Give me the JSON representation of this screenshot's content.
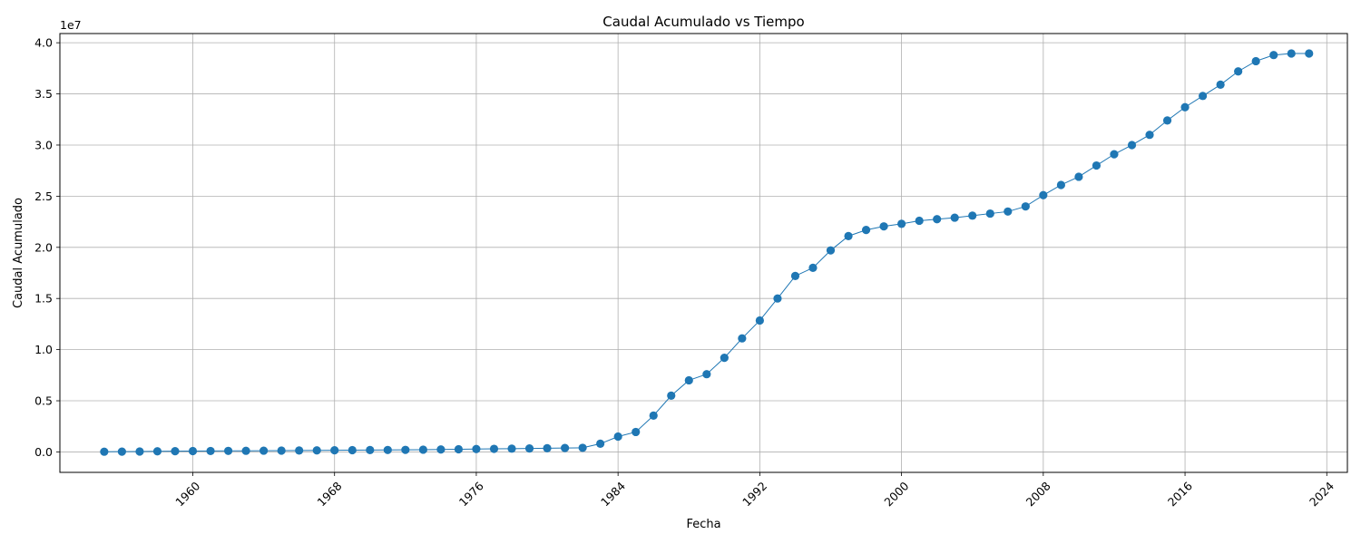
{
  "chart_data": {
    "type": "line",
    "title": "Caudal Acumulado vs Tiempo",
    "xlabel": "Fecha",
    "ylabel": "Caudal Acumulado",
    "y_offset_label": "1e7",
    "grid": true,
    "marker": "circle",
    "line_color": "#1f77b4",
    "x_ticks": [
      "1960",
      "1968",
      "1976",
      "1984",
      "1992",
      "2000",
      "2008",
      "2016",
      "2024"
    ],
    "y_ticks": [
      "0.0",
      "0.5",
      "1.0",
      "1.5",
      "2.0",
      "2.5",
      "3.0",
      "3.5",
      "4.0"
    ],
    "xlim": [
      "1952-07-01",
      "2025-03-01"
    ],
    "ylim": [
      -2000000,
      40900000
    ],
    "series": [
      {
        "x": [
          "1955-01-01",
          "1956-01-01",
          "1957-01-01",
          "1958-01-01",
          "1959-01-01",
          "1960-01-01",
          "1961-01-01",
          "1962-01-01",
          "1963-01-01",
          "1964-01-01",
          "1965-01-01",
          "1966-01-01",
          "1967-01-01",
          "1968-01-01",
          "1969-01-01",
          "1970-01-01",
          "1971-01-01",
          "1972-01-01",
          "1973-01-01",
          "1974-01-01",
          "1975-01-01",
          "1976-01-01",
          "1977-01-01",
          "1978-01-01",
          "1979-01-01",
          "1980-01-01",
          "1981-01-01",
          "1982-01-01",
          "1983-01-01",
          "1984-01-01",
          "1985-01-01",
          "1986-01-01",
          "1987-01-01",
          "1988-01-01",
          "1989-01-01",
          "1990-01-01",
          "1991-01-01",
          "1992-01-01",
          "1993-01-01",
          "1994-01-01",
          "1995-01-01",
          "1996-01-01",
          "1997-01-01",
          "1998-01-01",
          "1999-01-01",
          "2000-01-01",
          "2001-01-01",
          "2002-01-01",
          "2003-01-01",
          "2004-01-01",
          "2005-01-01",
          "2006-01-01",
          "2007-01-01",
          "2008-01-01",
          "2009-01-01",
          "2010-01-01",
          "2011-01-01",
          "2012-01-01",
          "2013-01-01",
          "2014-01-01",
          "2015-01-01",
          "2016-01-01",
          "2017-01-01",
          "2018-01-01",
          "2019-01-01",
          "2020-01-01",
          "2021-01-01",
          "2022-01-01",
          "2023-01-01"
        ],
        "values": [
          20000,
          30000,
          40000,
          60000,
          70000,
          80000,
          90000,
          100000,
          110000,
          120000,
          130000,
          140000,
          150000,
          160000,
          170000,
          180000,
          190000,
          200000,
          220000,
          240000,
          260000,
          280000,
          300000,
          320000,
          340000,
          360000,
          380000,
          400000,
          800000,
          1500000,
          1950000,
          3550000,
          5500000,
          7000000,
          7600000,
          9200000,
          11100000,
          12850000,
          15000000,
          17200000,
          18000000,
          19700000,
          21100000,
          21700000,
          22050000,
          22300000,
          22600000,
          22750000,
          22900000,
          23100000,
          23300000,
          23500000,
          24000000,
          25100000,
          26100000,
          26900000,
          28000000,
          29100000,
          30000000,
          31000000,
          32400000,
          33700000,
          34800000,
          35900000,
          37200000,
          38200000,
          38800000,
          38950000,
          38950000
        ]
      }
    ]
  }
}
